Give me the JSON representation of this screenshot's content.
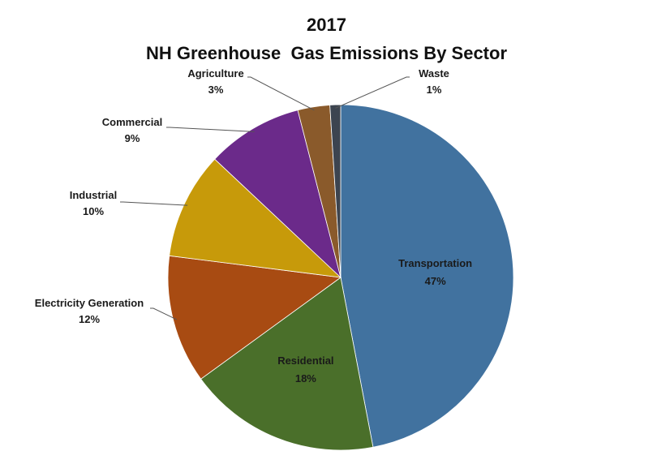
{
  "chart_data": {
    "type": "pie",
    "title_line1": "2017",
    "title_line2": "NH Greenhouse  Gas Emissions By Sector",
    "slices": [
      {
        "label": "Transportation",
        "value_label": "47%",
        "value": 47,
        "color": "#41729f"
      },
      {
        "label": "Residential",
        "value_label": "18%",
        "value": 18,
        "color": "#4a6f2a"
      },
      {
        "label": "Electricity Generation",
        "value_label": "12%",
        "value": 12,
        "color": "#a84b12"
      },
      {
        "label": "Industrial",
        "value_label": "10%",
        "value": 10,
        "color": "#c79a0a"
      },
      {
        "label": "Commercial",
        "value_label": "9%",
        "value": 9,
        "color": "#6b2a8a"
      },
      {
        "label": "Agriculture",
        "value_label": "3%",
        "value": 3,
        "color": "#8a5a2b"
      },
      {
        "label": "Waste",
        "value_label": "1%",
        "value": 1,
        "color": "#3c4450"
      }
    ]
  }
}
